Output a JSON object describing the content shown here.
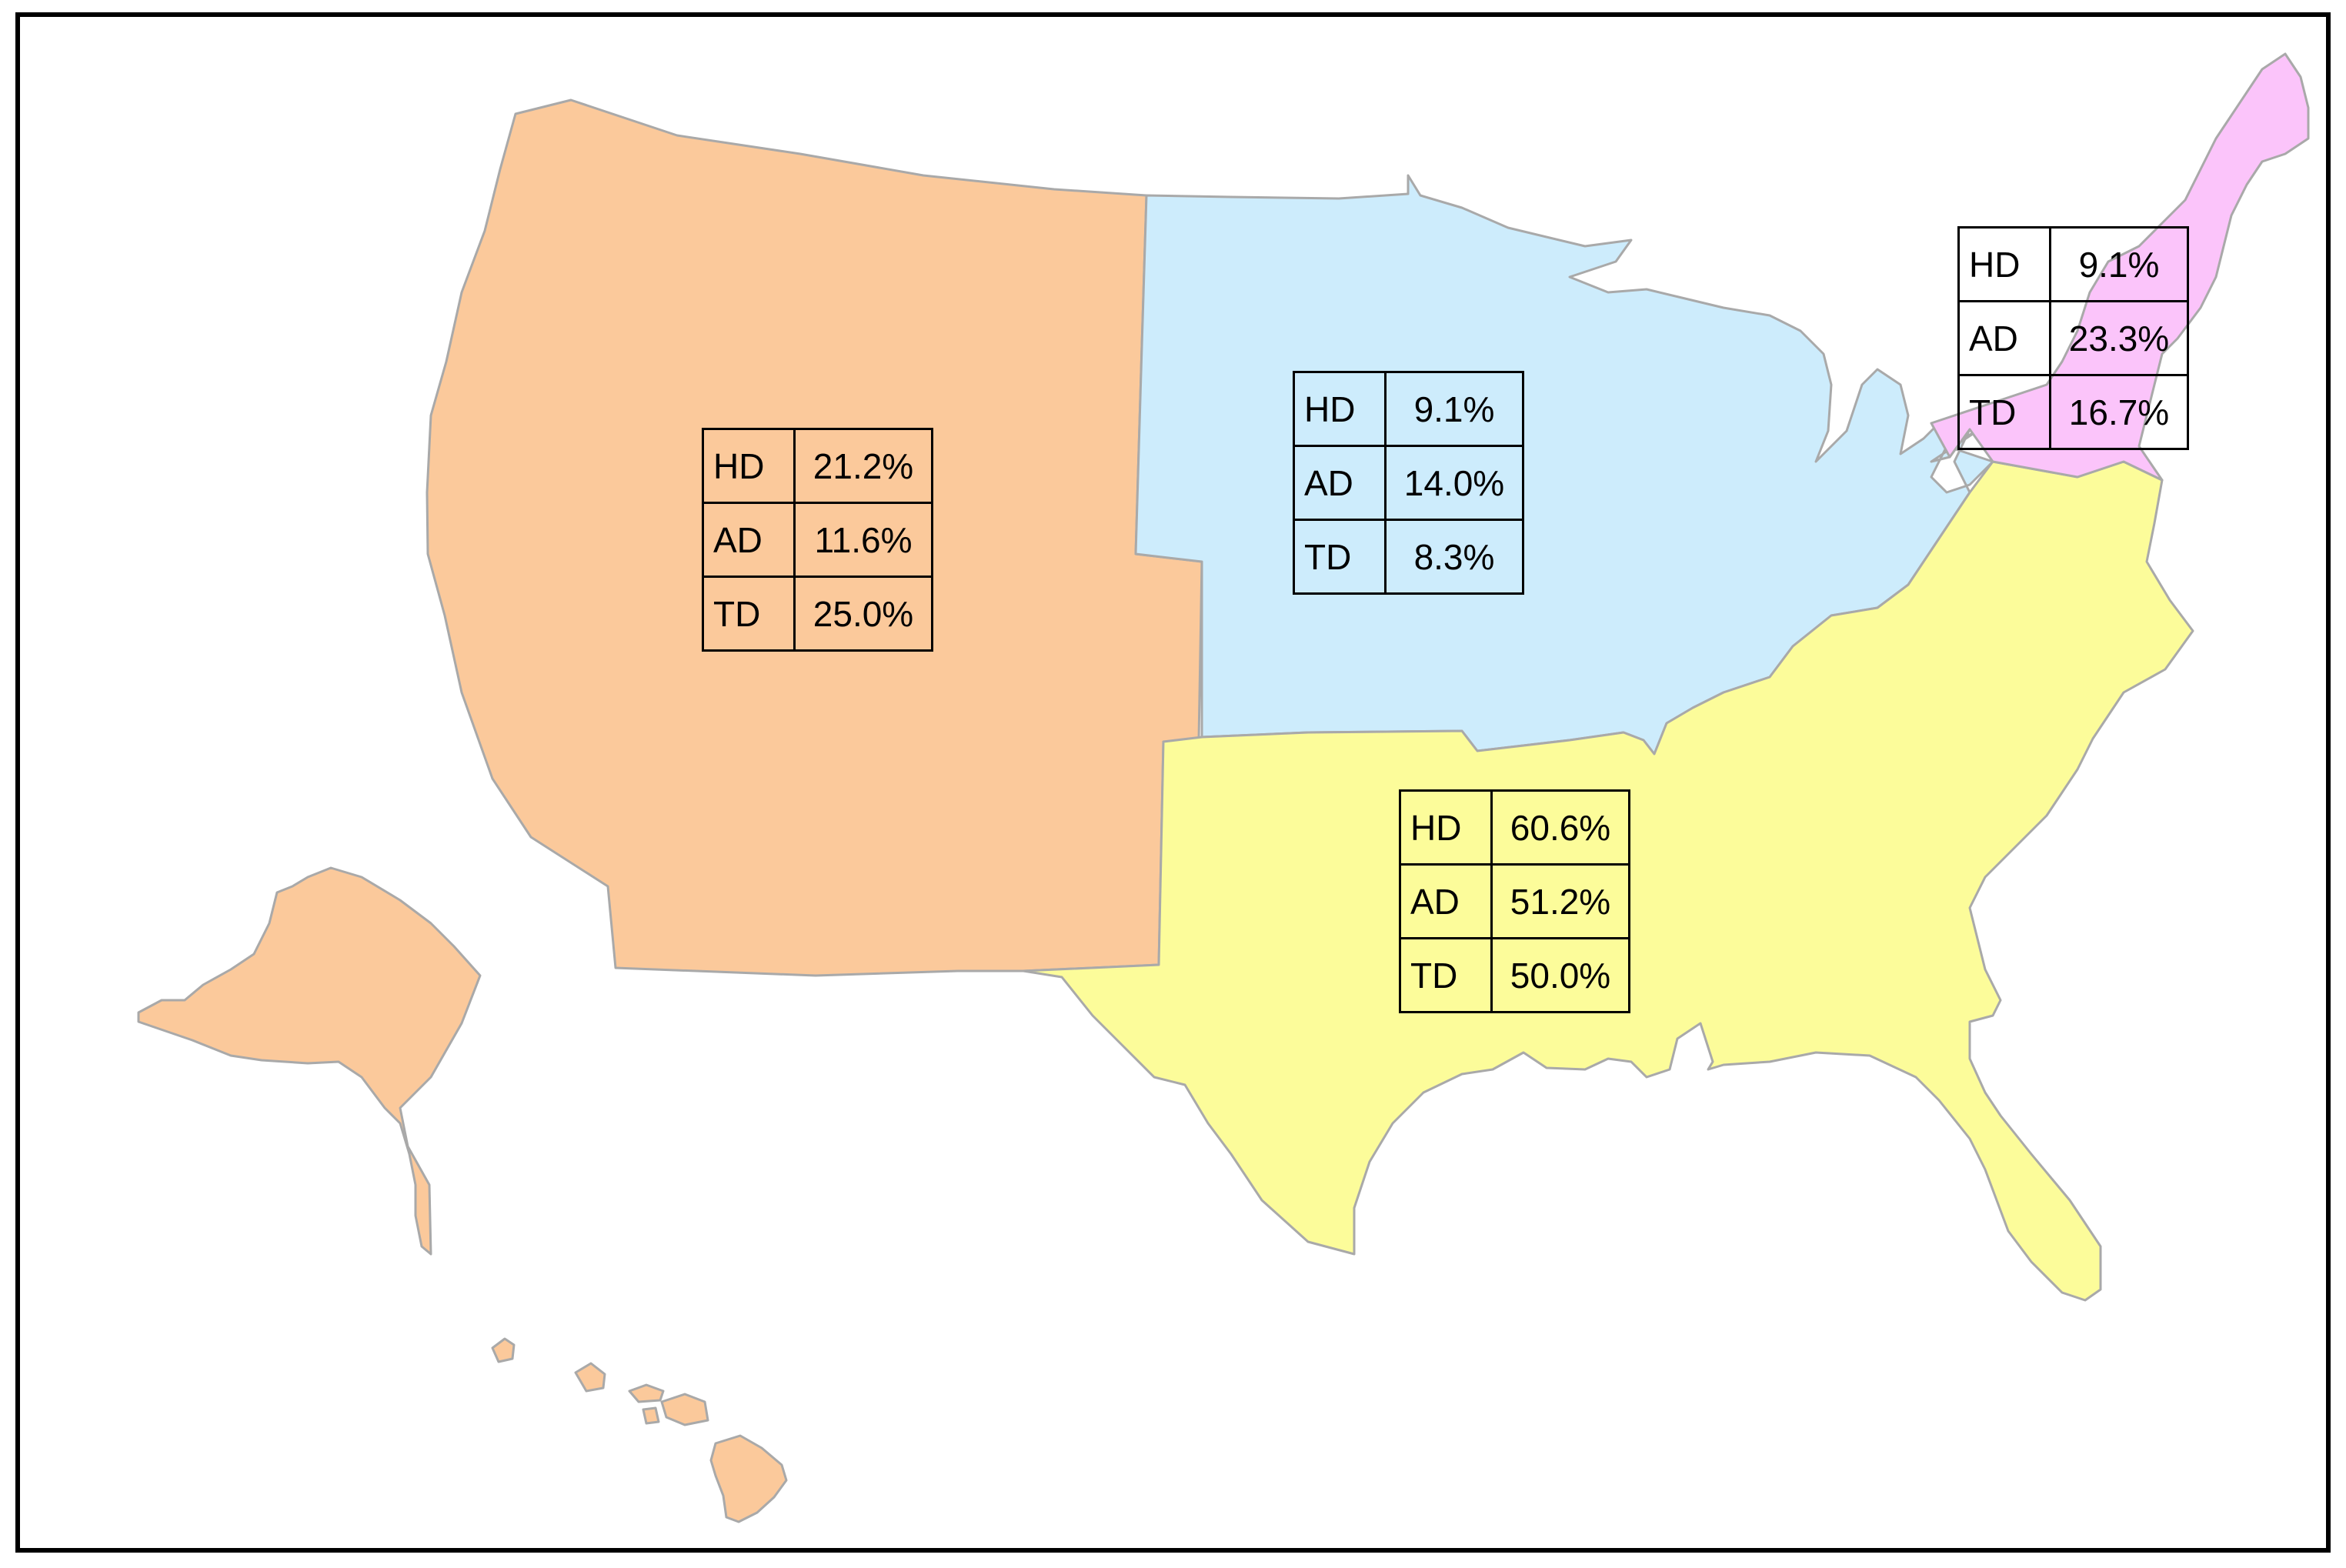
{
  "map": {
    "regions": [
      {
        "id": "west",
        "color": "#fbc99b",
        "stats": [
          {
            "metric": "HD",
            "value": "21.2%"
          },
          {
            "metric": "AD",
            "value": "11.6%"
          },
          {
            "metric": "TD",
            "value": "25.0%"
          }
        ]
      },
      {
        "id": "midwest",
        "color": "#cdecfc",
        "stats": [
          {
            "metric": "HD",
            "value": "9.1%"
          },
          {
            "metric": "AD",
            "value": "14.0%"
          },
          {
            "metric": "TD",
            "value": "8.3%"
          }
        ]
      },
      {
        "id": "south",
        "color": "#fcfc9a",
        "stats": [
          {
            "metric": "HD",
            "value": "60.6%"
          },
          {
            "metric": "AD",
            "value": "51.2%"
          },
          {
            "metric": "TD",
            "value": "50.0%"
          }
        ]
      },
      {
        "id": "northeast",
        "color": "#fbc4fa",
        "stats": [
          {
            "metric": "HD",
            "value": "9.1%"
          },
          {
            "metric": "AD",
            "value": "23.3%"
          },
          {
            "metric": "TD",
            "value": "16.7%"
          }
        ]
      }
    ]
  }
}
